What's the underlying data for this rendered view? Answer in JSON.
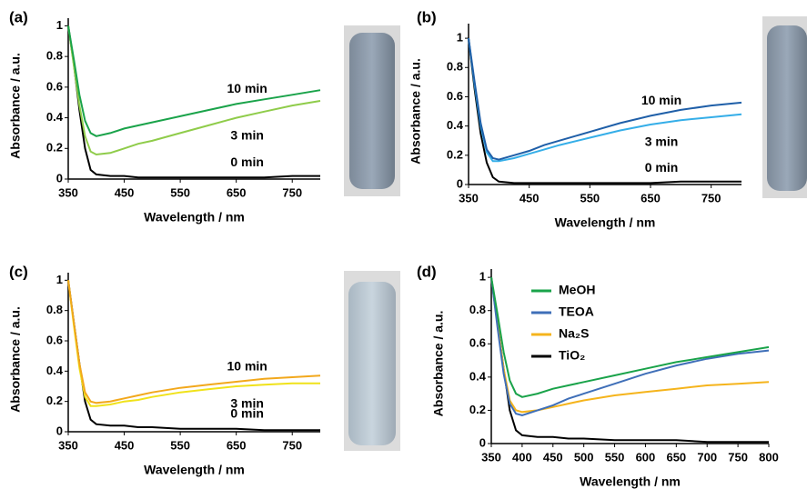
{
  "chart_data": [
    {
      "type": "line",
      "label": "(a)",
      "xlabel": "Wavelength / nm",
      "ylabel": "Absorbance / a.u.",
      "x": [
        350,
        360,
        370,
        380,
        390,
        400,
        425,
        450,
        475,
        500,
        550,
        600,
        650,
        700,
        750,
        800
      ],
      "xlim": [
        350,
        800
      ],
      "xticks": [
        350,
        450,
        550,
        650,
        750
      ],
      "ylim": [
        0,
        1.05
      ],
      "yticks": [
        0,
        0.2,
        0.4,
        0.6,
        0.8,
        1
      ],
      "series": [
        {
          "name": "10 min",
          "color": "#1aa34a",
          "values": [
            1.0,
            0.78,
            0.55,
            0.38,
            0.3,
            0.28,
            0.3,
            0.33,
            0.35,
            0.37,
            0.41,
            0.45,
            0.49,
            0.52,
            0.55,
            0.58
          ]
        },
        {
          "name": "3 min",
          "color": "#8fcc4a",
          "values": [
            1.0,
            0.74,
            0.48,
            0.28,
            0.18,
            0.16,
            0.17,
            0.2,
            0.23,
            0.25,
            0.3,
            0.35,
            0.4,
            0.44,
            0.48,
            0.51
          ]
        },
        {
          "name": "0 min",
          "color": "#000000",
          "values": [
            1.0,
            0.75,
            0.45,
            0.2,
            0.06,
            0.03,
            0.02,
            0.02,
            0.01,
            0.01,
            0.01,
            0.01,
            0.01,
            0.01,
            0.02,
            0.02
          ]
        }
      ]
    },
    {
      "type": "line",
      "label": "(b)",
      "xlabel": "Wavelength / nm",
      "ylabel": "Absorbance / a.u.",
      "x": [
        350,
        360,
        370,
        380,
        390,
        400,
        425,
        450,
        475,
        500,
        550,
        600,
        650,
        700,
        750,
        800
      ],
      "xlim": [
        350,
        800
      ],
      "xticks": [
        350,
        450,
        550,
        650,
        750
      ],
      "ylim": [
        0,
        1.1
      ],
      "yticks": [
        0,
        0.2,
        0.4,
        0.6,
        0.8,
        1
      ],
      "series": [
        {
          "name": "10 min",
          "color": "#1f5fa8",
          "values": [
            1.0,
            0.7,
            0.42,
            0.24,
            0.18,
            0.17,
            0.2,
            0.23,
            0.27,
            0.3,
            0.36,
            0.42,
            0.47,
            0.51,
            0.54,
            0.56
          ]
        },
        {
          "name": "3 min",
          "color": "#35aee8",
          "values": [
            1.0,
            0.68,
            0.4,
            0.22,
            0.16,
            0.16,
            0.18,
            0.21,
            0.24,
            0.27,
            0.32,
            0.37,
            0.41,
            0.44,
            0.46,
            0.48
          ]
        },
        {
          "name": "0 min",
          "color": "#000000",
          "values": [
            1.0,
            0.65,
            0.35,
            0.15,
            0.05,
            0.02,
            0.01,
            0.01,
            0.01,
            0.01,
            0.01,
            0.01,
            0.01,
            0.02,
            0.02,
            0.02
          ]
        }
      ]
    },
    {
      "type": "line",
      "label": "(c)",
      "xlabel": "Wavelength / nm",
      "ylabel": "Absorbance / a.u.",
      "x": [
        350,
        360,
        370,
        380,
        390,
        400,
        425,
        450,
        475,
        500,
        550,
        600,
        650,
        700,
        750,
        800
      ],
      "xlim": [
        350,
        800
      ],
      "xticks": [
        350,
        450,
        550,
        650,
        750
      ],
      "ylim": [
        0,
        1.05
      ],
      "yticks": [
        0,
        0.2,
        0.4,
        0.6,
        0.8,
        1
      ],
      "series": [
        {
          "name": "10 min",
          "color": "#f2a81c",
          "values": [
            1.0,
            0.72,
            0.45,
            0.26,
            0.2,
            0.19,
            0.2,
            0.22,
            0.24,
            0.26,
            0.29,
            0.31,
            0.33,
            0.35,
            0.36,
            0.37
          ]
        },
        {
          "name": "3 min",
          "color": "#f0e21a",
          "values": [
            1.0,
            0.7,
            0.42,
            0.23,
            0.17,
            0.17,
            0.18,
            0.2,
            0.21,
            0.23,
            0.26,
            0.28,
            0.3,
            0.31,
            0.32,
            0.32
          ]
        },
        {
          "name": "0 min",
          "color": "#000000",
          "values": [
            1.0,
            0.72,
            0.45,
            0.2,
            0.08,
            0.05,
            0.04,
            0.04,
            0.03,
            0.03,
            0.02,
            0.02,
            0.02,
            0.01,
            0.01,
            0.01
          ]
        }
      ]
    },
    {
      "type": "line",
      "label": "(d)",
      "xlabel": "Wavelength / nm",
      "ylabel": "Absorbance / a.u.",
      "x": [
        350,
        360,
        370,
        380,
        390,
        400,
        425,
        450,
        475,
        500,
        550,
        600,
        650,
        700,
        750,
        800
      ],
      "xlim": [
        350,
        800
      ],
      "xticks": [
        350,
        400,
        450,
        500,
        550,
        600,
        650,
        700,
        750,
        800
      ],
      "ylim": [
        0,
        1.05
      ],
      "yticks": [
        0,
        0.2,
        0.4,
        0.6,
        0.8,
        1
      ],
      "legend": "upper left",
      "series": [
        {
          "name": "MeOH",
          "color": "#1aa34a",
          "values": [
            1.0,
            0.78,
            0.55,
            0.38,
            0.3,
            0.28,
            0.3,
            0.33,
            0.35,
            0.37,
            0.41,
            0.45,
            0.49,
            0.52,
            0.55,
            0.58
          ]
        },
        {
          "name": "TEOA",
          "color": "#3f6fb8",
          "values": [
            1.0,
            0.7,
            0.42,
            0.24,
            0.18,
            0.17,
            0.2,
            0.23,
            0.27,
            0.3,
            0.36,
            0.42,
            0.47,
            0.51,
            0.54,
            0.56
          ]
        },
        {
          "name": "Na₂S",
          "color": "#f5b41c",
          "values": [
            1.0,
            0.72,
            0.45,
            0.26,
            0.2,
            0.19,
            0.2,
            0.22,
            0.24,
            0.26,
            0.29,
            0.31,
            0.33,
            0.35,
            0.36,
            0.37
          ]
        },
        {
          "name": "TiO₂",
          "color": "#000000",
          "values": [
            1.0,
            0.72,
            0.45,
            0.2,
            0.08,
            0.05,
            0.04,
            0.04,
            0.03,
            0.03,
            0.02,
            0.02,
            0.02,
            0.01,
            0.01,
            0.01
          ]
        }
      ]
    }
  ]
}
